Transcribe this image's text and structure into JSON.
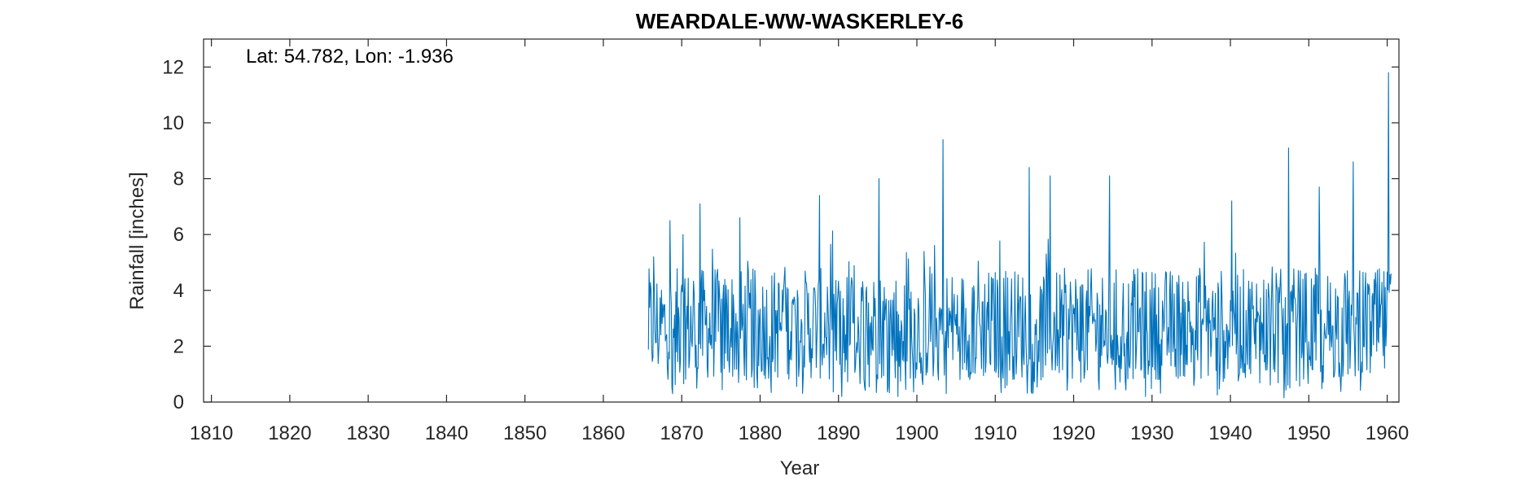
{
  "chart_data": {
    "type": "line",
    "title": "WEARDALE-WW-WASKERLEY-6",
    "annotation": "Lat: 54.782, Lon: -1.936",
    "xlabel": "Year",
    "ylabel": "Rainfall [inches]",
    "xlim": [
      1809,
      1961.5
    ],
    "ylim": [
      0,
      13
    ],
    "xticks": [
      1810,
      1820,
      1830,
      1840,
      1850,
      1860,
      1870,
      1880,
      1890,
      1900,
      1910,
      1920,
      1930,
      1940,
      1950,
      1960
    ],
    "yticks": [
      0,
      2,
      4,
      6,
      8,
      10,
      12
    ],
    "grid": false,
    "box": true,
    "series": [
      {
        "color": "#0072bd",
        "frequency": "monthly",
        "x_start": 1865.75,
        "x_end": 1960.5,
        "peaks": [
          {
            "x": 1866.4,
            "y": 5.2
          },
          {
            "x": 1868.5,
            "y": 6.5
          },
          {
            "x": 1870.2,
            "y": 6.0
          },
          {
            "x": 1872.3,
            "y": 7.1
          },
          {
            "x": 1877.4,
            "y": 6.6
          },
          {
            "x": 1887.6,
            "y": 7.4
          },
          {
            "x": 1895.2,
            "y": 8.0
          },
          {
            "x": 1903.3,
            "y": 9.4
          },
          {
            "x": 1914.3,
            "y": 8.4
          },
          {
            "x": 1917.0,
            "y": 8.1
          },
          {
            "x": 1924.6,
            "y": 8.1
          },
          {
            "x": 1940.2,
            "y": 7.2
          },
          {
            "x": 1947.4,
            "y": 9.1
          },
          {
            "x": 1951.3,
            "y": 7.7
          },
          {
            "x": 1955.7,
            "y": 8.6
          },
          {
            "x": 1960.2,
            "y": 11.8
          }
        ],
        "troughs": [
          {
            "x": 1868.8,
            "y": 0.3
          },
          {
            "x": 1890.4,
            "y": 0.2
          },
          {
            "x": 1897.6,
            "y": 0.2
          },
          {
            "x": 1929.2,
            "y": 0.2
          },
          {
            "x": 1938.3,
            "y": 0.25
          },
          {
            "x": 1946.8,
            "y": 0.15
          }
        ],
        "typical_range": [
          0.8,
          5.5
        ]
      }
    ]
  }
}
